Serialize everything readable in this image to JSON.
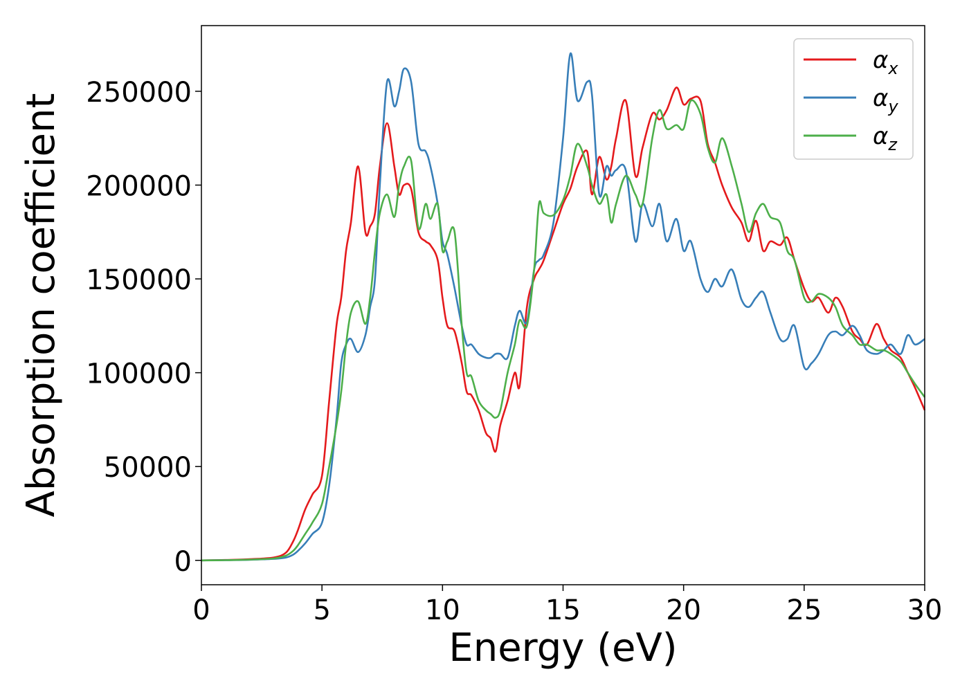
{
  "chart_data": {
    "type": "line",
    "xlabel": "Energy (eV)",
    "ylabel": "Absorption coefficient",
    "xlim": [
      0,
      30
    ],
    "ylim": [
      -13000,
      285000
    ],
    "x_ticks": [
      "0",
      "5",
      "10",
      "15",
      "20",
      "25",
      "30"
    ],
    "y_ticks": [
      "0",
      "50000",
      "100000",
      "150000",
      "200000",
      "250000"
    ],
    "grid": false,
    "legend_position": "top-right",
    "series": [
      {
        "name": "α_x",
        "legend_base": "α",
        "legend_sub": "x",
        "color": "#e41a1c",
        "x": [
          0,
          1,
          2,
          3,
          3.5,
          3.8,
          4,
          4.3,
          4.6,
          5,
          5.3,
          5.6,
          5.8,
          6,
          6.2,
          6.5,
          6.8,
          7,
          7.2,
          7.4,
          7.7,
          8,
          8.2,
          8.4,
          8.7,
          9,
          9.3,
          9.5,
          9.8,
          10,
          10.2,
          10.5,
          10.8,
          11,
          11.2,
          11.5,
          11.8,
          12,
          12.2,
          12.4,
          12.7,
          13,
          13.2,
          13.5,
          13.8,
          14,
          14.2,
          14.6,
          15,
          15.3,
          15.6,
          16,
          16.2,
          16.5,
          16.8,
          17,
          17.2,
          17.6,
          18,
          18.3,
          18.7,
          19,
          19.3,
          19.7,
          20,
          20.3,
          20.7,
          21,
          21.3,
          21.6,
          22,
          22.4,
          22.7,
          23,
          23.3,
          23.6,
          24,
          24.3,
          24.6,
          25,
          25.3,
          25.6,
          26,
          26.3,
          26.6,
          27,
          27.3,
          27.6,
          28,
          28.3,
          28.6,
          29,
          29.3,
          29.6,
          30
        ],
        "y": [
          0,
          200,
          600,
          1500,
          4000,
          10000,
          16000,
          27000,
          35000,
          45000,
          85000,
          125000,
          140000,
          165000,
          180000,
          210000,
          175000,
          178000,
          185000,
          210000,
          233000,
          210000,
          195000,
          200000,
          198000,
          175000,
          170000,
          168000,
          160000,
          140000,
          125000,
          122000,
          105000,
          90000,
          88000,
          80000,
          68000,
          65000,
          58000,
          72000,
          85000,
          100000,
          93000,
          135000,
          150000,
          155000,
          160000,
          175000,
          190000,
          198000,
          210000,
          218000,
          195000,
          215000,
          203000,
          210000,
          225000,
          245000,
          205000,
          220000,
          238000,
          235000,
          240000,
          252000,
          243000,
          246000,
          245000,
          222000,
          212000,
          200000,
          188000,
          180000,
          170000,
          181000,
          165000,
          170000,
          168000,
          172000,
          160000,
          145000,
          138000,
          140000,
          132000,
          140000,
          135000,
          122000,
          118000,
          115000,
          126000,
          118000,
          112000,
          108000,
          100000,
          92000,
          80000
        ]
      },
      {
        "name": "α_y",
        "legend_base": "α",
        "legend_sub": "y",
        "color": "#377eb8",
        "x": [
          0,
          1,
          2,
          3,
          3.5,
          3.8,
          4,
          4.3,
          4.6,
          5,
          5.3,
          5.6,
          5.8,
          6,
          6.2,
          6.5,
          6.8,
          7,
          7.2,
          7.4,
          7.7,
          8,
          8.2,
          8.4,
          8.7,
          9,
          9.3,
          9.5,
          9.8,
          10,
          10.2,
          10.5,
          10.8,
          11,
          11.2,
          11.5,
          11.8,
          12,
          12.2,
          12.4,
          12.7,
          13,
          13.2,
          13.5,
          13.8,
          14,
          14.2,
          14.6,
          15,
          15.3,
          15.6,
          16,
          16.2,
          16.5,
          16.8,
          17,
          17.2,
          17.6,
          18,
          18.3,
          18.7,
          19,
          19.3,
          19.7,
          20,
          20.3,
          20.7,
          21,
          21.3,
          21.6,
          22,
          22.4,
          22.7,
          23,
          23.3,
          23.6,
          24,
          24.3,
          24.6,
          25,
          25.3,
          25.6,
          26,
          26.3,
          26.6,
          27,
          27.3,
          27.6,
          28,
          28.3,
          28.6,
          29,
          29.3,
          29.6,
          30
        ],
        "y": [
          0,
          100,
          300,
          800,
          1500,
          3000,
          5000,
          9000,
          14000,
          20000,
          40000,
          75000,
          105000,
          115000,
          118000,
          111000,
          120000,
          135000,
          150000,
          200000,
          255000,
          242000,
          250000,
          262000,
          255000,
          222000,
          218000,
          210000,
          190000,
          170000,
          163000,
          145000,
          125000,
          115000,
          115000,
          110000,
          108000,
          108000,
          110000,
          110000,
          108000,
          125000,
          133000,
          127000,
          155000,
          160000,
          163000,
          180000,
          225000,
          270000,
          245000,
          255000,
          248000,
          195000,
          210000,
          205000,
          208000,
          208000,
          170000,
          190000,
          178000,
          190000,
          170000,
          182000,
          165000,
          170000,
          150000,
          143000,
          150000,
          146000,
          155000,
          139000,
          135000,
          140000,
          143000,
          132000,
          118000,
          118000,
          125000,
          103000,
          105000,
          110000,
          120000,
          122000,
          120000,
          125000,
          120000,
          112000,
          110000,
          112000,
          115000,
          110000,
          120000,
          115000,
          118000
        ]
      },
      {
        "name": "α_z",
        "legend_base": "α",
        "legend_sub": "z",
        "color": "#4daf4a",
        "x": [
          0,
          1,
          2,
          3,
          3.5,
          3.8,
          4,
          4.3,
          4.6,
          5,
          5.3,
          5.6,
          5.8,
          6,
          6.2,
          6.5,
          6.8,
          7,
          7.2,
          7.4,
          7.7,
          8,
          8.2,
          8.4,
          8.7,
          9,
          9.3,
          9.5,
          9.8,
          10,
          10.2,
          10.5,
          10.8,
          11,
          11.2,
          11.5,
          11.8,
          12,
          12.2,
          12.4,
          12.7,
          13,
          13.2,
          13.5,
          13.8,
          14,
          14.2,
          14.6,
          15,
          15.3,
          15.6,
          16,
          16.2,
          16.5,
          16.8,
          17,
          17.2,
          17.6,
          18,
          18.3,
          18.7,
          19,
          19.3,
          19.7,
          20,
          20.3,
          20.7,
          21,
          21.3,
          21.6,
          22,
          22.4,
          22.7,
          23,
          23.3,
          23.6,
          24,
          24.3,
          24.6,
          25,
          25.3,
          25.6,
          26,
          26.3,
          26.6,
          27,
          27.3,
          27.6,
          28,
          28.3,
          28.6,
          29,
          29.3,
          29.6,
          30
        ],
        "y": [
          0,
          100,
          400,
          1000,
          2500,
          5000,
          8000,
          14000,
          20000,
          30000,
          50000,
          72000,
          90000,
          115000,
          132000,
          138000,
          126000,
          140000,
          165000,
          185000,
          195000,
          183000,
          200000,
          210000,
          213000,
          177000,
          190000,
          182000,
          190000,
          165000,
          170000,
          175000,
          125000,
          100000,
          98000,
          85000,
          80000,
          78000,
          76000,
          80000,
          100000,
          115000,
          128000,
          125000,
          155000,
          190000,
          185000,
          184000,
          192000,
          205000,
          222000,
          210000,
          200000,
          190000,
          195000,
          180000,
          190000,
          205000,
          195000,
          190000,
          225000,
          240000,
          230000,
          232000,
          230000,
          245000,
          238000,
          220000,
          212000,
          225000,
          210000,
          190000,
          175000,
          185000,
          190000,
          183000,
          180000,
          165000,
          160000,
          140000,
          138000,
          142000,
          140000,
          135000,
          125000,
          120000,
          115000,
          115000,
          112000,
          112000,
          110000,
          106000,
          100000,
          94000,
          87000
        ]
      }
    ]
  }
}
